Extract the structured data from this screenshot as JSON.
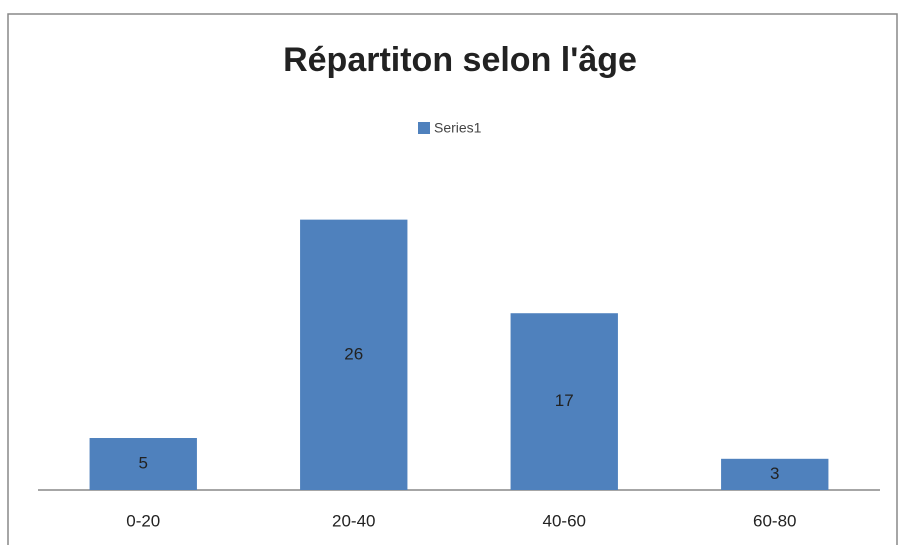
{
  "chart_data": {
    "type": "bar",
    "title": "Répartiton selon l'âge",
    "categories": [
      "0-20",
      "20-40",
      "40-60",
      "60-80"
    ],
    "series": [
      {
        "name": "Series1",
        "color": "#4f81bd",
        "values": [
          5,
          26,
          17,
          3
        ]
      }
    ],
    "legend": "top"
  }
}
